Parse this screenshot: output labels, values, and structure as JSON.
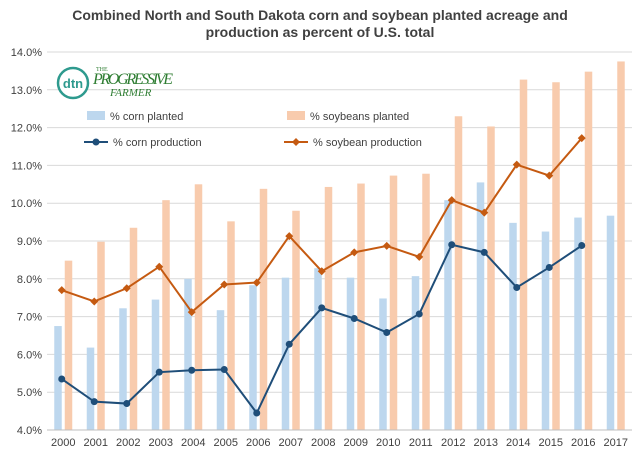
{
  "chart_data": {
    "type": "bar+line",
    "title_line1": "Combined North and South Dakota corn and soybean planted acreage and",
    "title_line2": "production as percent of U.S. total",
    "categories": [
      "2000",
      "2001",
      "2002",
      "2003",
      "2004",
      "2005",
      "2006",
      "2007",
      "2008",
      "2009",
      "2010",
      "2011",
      "2012",
      "2013",
      "2014",
      "2015",
      "2016",
      "2017"
    ],
    "ylim": [
      4.0,
      14.0
    ],
    "yticks": [
      "4.0%",
      "5.0%",
      "6.0%",
      "7.0%",
      "8.0%",
      "9.0%",
      "10.0%",
      "11.0%",
      "12.0%",
      "13.0%",
      "14.0%"
    ],
    "grid": true,
    "legend_position": "top-left inside plot",
    "series": [
      {
        "name": "% corn planted",
        "kind": "bar",
        "color": "#bdd7ee",
        "values": [
          6.75,
          6.18,
          7.22,
          7.45,
          8.0,
          7.17,
          7.83,
          8.03,
          8.28,
          8.03,
          7.48,
          8.07,
          10.08,
          10.55,
          9.48,
          9.25,
          9.62,
          9.67
        ]
      },
      {
        "name": "% soybeans planted",
        "kind": "bar",
        "color": "#f8cbad",
        "values": [
          8.48,
          8.98,
          9.35,
          10.08,
          10.5,
          9.52,
          10.38,
          9.8,
          10.43,
          10.52,
          10.73,
          10.78,
          12.3,
          12.03,
          13.27,
          13.2,
          13.48,
          13.75
        ]
      },
      {
        "name": "% corn production",
        "kind": "line",
        "color": "#1f4e79",
        "values": [
          5.35,
          4.75,
          4.7,
          5.53,
          5.58,
          5.6,
          4.45,
          6.27,
          7.23,
          6.95,
          6.58,
          7.07,
          8.9,
          8.7,
          7.77,
          8.3,
          8.88,
          null
        ]
      },
      {
        "name": "% soybean production",
        "kind": "line",
        "color": "#c55a11",
        "values": [
          7.7,
          7.4,
          7.75,
          8.32,
          7.12,
          7.85,
          7.9,
          9.13,
          8.2,
          8.7,
          8.87,
          8.58,
          10.08,
          9.75,
          11.02,
          10.73,
          11.72,
          null
        ]
      }
    ]
  },
  "logo": {
    "badge": "dtn",
    "wordmark_top": "THE",
    "wordmark_main": "PROGRESSIVE",
    "wordmark_sub": "FARMER"
  }
}
